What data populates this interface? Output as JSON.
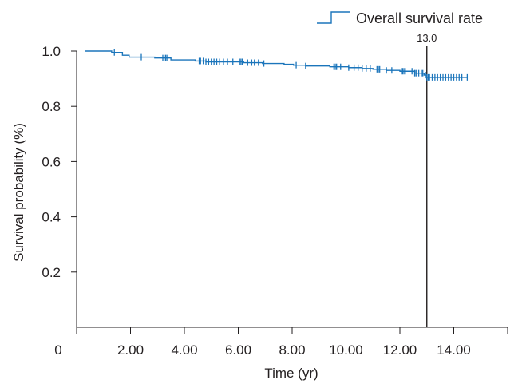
{
  "chart_data": {
    "type": "line",
    "title": "",
    "xlabel": "Time (yr)",
    "ylabel": "Survival probability (%)",
    "xlim": [
      0,
      16
    ],
    "ylim": [
      0,
      1.0
    ],
    "x_ticks": [
      0,
      2,
      4,
      6,
      8,
      10,
      12,
      14,
      16
    ],
    "x_tick_labels": [
      "0",
      "2.00",
      "4.00",
      "6.00",
      "8.00",
      "10.00",
      "12.00",
      "14.00",
      ""
    ],
    "y_ticks": [
      0.2,
      0.4,
      0.6,
      0.8,
      1.0
    ],
    "y_tick_labels": [
      "0.2",
      "0.4",
      "0.6",
      "0.8",
      "1.0"
    ],
    "legend": {
      "position": "top-right",
      "entries": [
        "Overall survival rate"
      ]
    },
    "reference_line": {
      "x": 13.0,
      "label": "13.0"
    },
    "colors": {
      "series": "#1b75bb",
      "axis": "#231f20"
    },
    "series": [
      {
        "name": "Overall survival rate",
        "steps": [
          [
            0.3,
            1.0
          ],
          [
            1.3,
            0.995
          ],
          [
            1.7,
            0.985
          ],
          [
            1.95,
            0.978
          ],
          [
            2.9,
            0.975
          ],
          [
            3.5,
            0.968
          ],
          [
            4.4,
            0.964
          ],
          [
            4.8,
            0.961
          ],
          [
            6.2,
            0.958
          ],
          [
            6.9,
            0.955
          ],
          [
            7.7,
            0.952
          ],
          [
            8.05,
            0.949
          ],
          [
            8.5,
            0.946
          ],
          [
            9.4,
            0.943
          ],
          [
            10.1,
            0.94
          ],
          [
            10.6,
            0.937
          ],
          [
            11.0,
            0.934
          ],
          [
            11.5,
            0.93
          ],
          [
            12.0,
            0.927
          ],
          [
            12.55,
            0.92
          ],
          [
            12.9,
            0.913
          ],
          [
            13.0,
            0.905
          ],
          [
            14.5,
            0.905
          ]
        ],
        "censored": [
          1.4,
          2.4,
          3.2,
          3.3,
          3.35,
          4.55,
          4.6,
          4.7,
          4.8,
          4.9,
          5.0,
          5.1,
          5.2,
          5.3,
          5.45,
          5.6,
          5.8,
          6.05,
          6.1,
          6.15,
          6.35,
          6.5,
          6.6,
          6.75,
          6.95,
          8.15,
          8.5,
          9.55,
          9.6,
          9.65,
          9.8,
          10.1,
          10.3,
          10.45,
          10.6,
          10.75,
          10.9,
          11.15,
          11.2,
          11.25,
          11.5,
          11.7,
          12.05,
          12.1,
          12.15,
          12.2,
          12.45,
          12.55,
          12.6,
          12.7,
          12.8,
          12.85,
          12.95,
          13.0,
          13.05,
          13.1,
          13.2,
          13.3,
          13.4,
          13.5,
          13.6,
          13.7,
          13.8,
          13.9,
          14.0,
          14.1,
          14.2,
          14.3,
          14.5
        ]
      }
    ]
  }
}
